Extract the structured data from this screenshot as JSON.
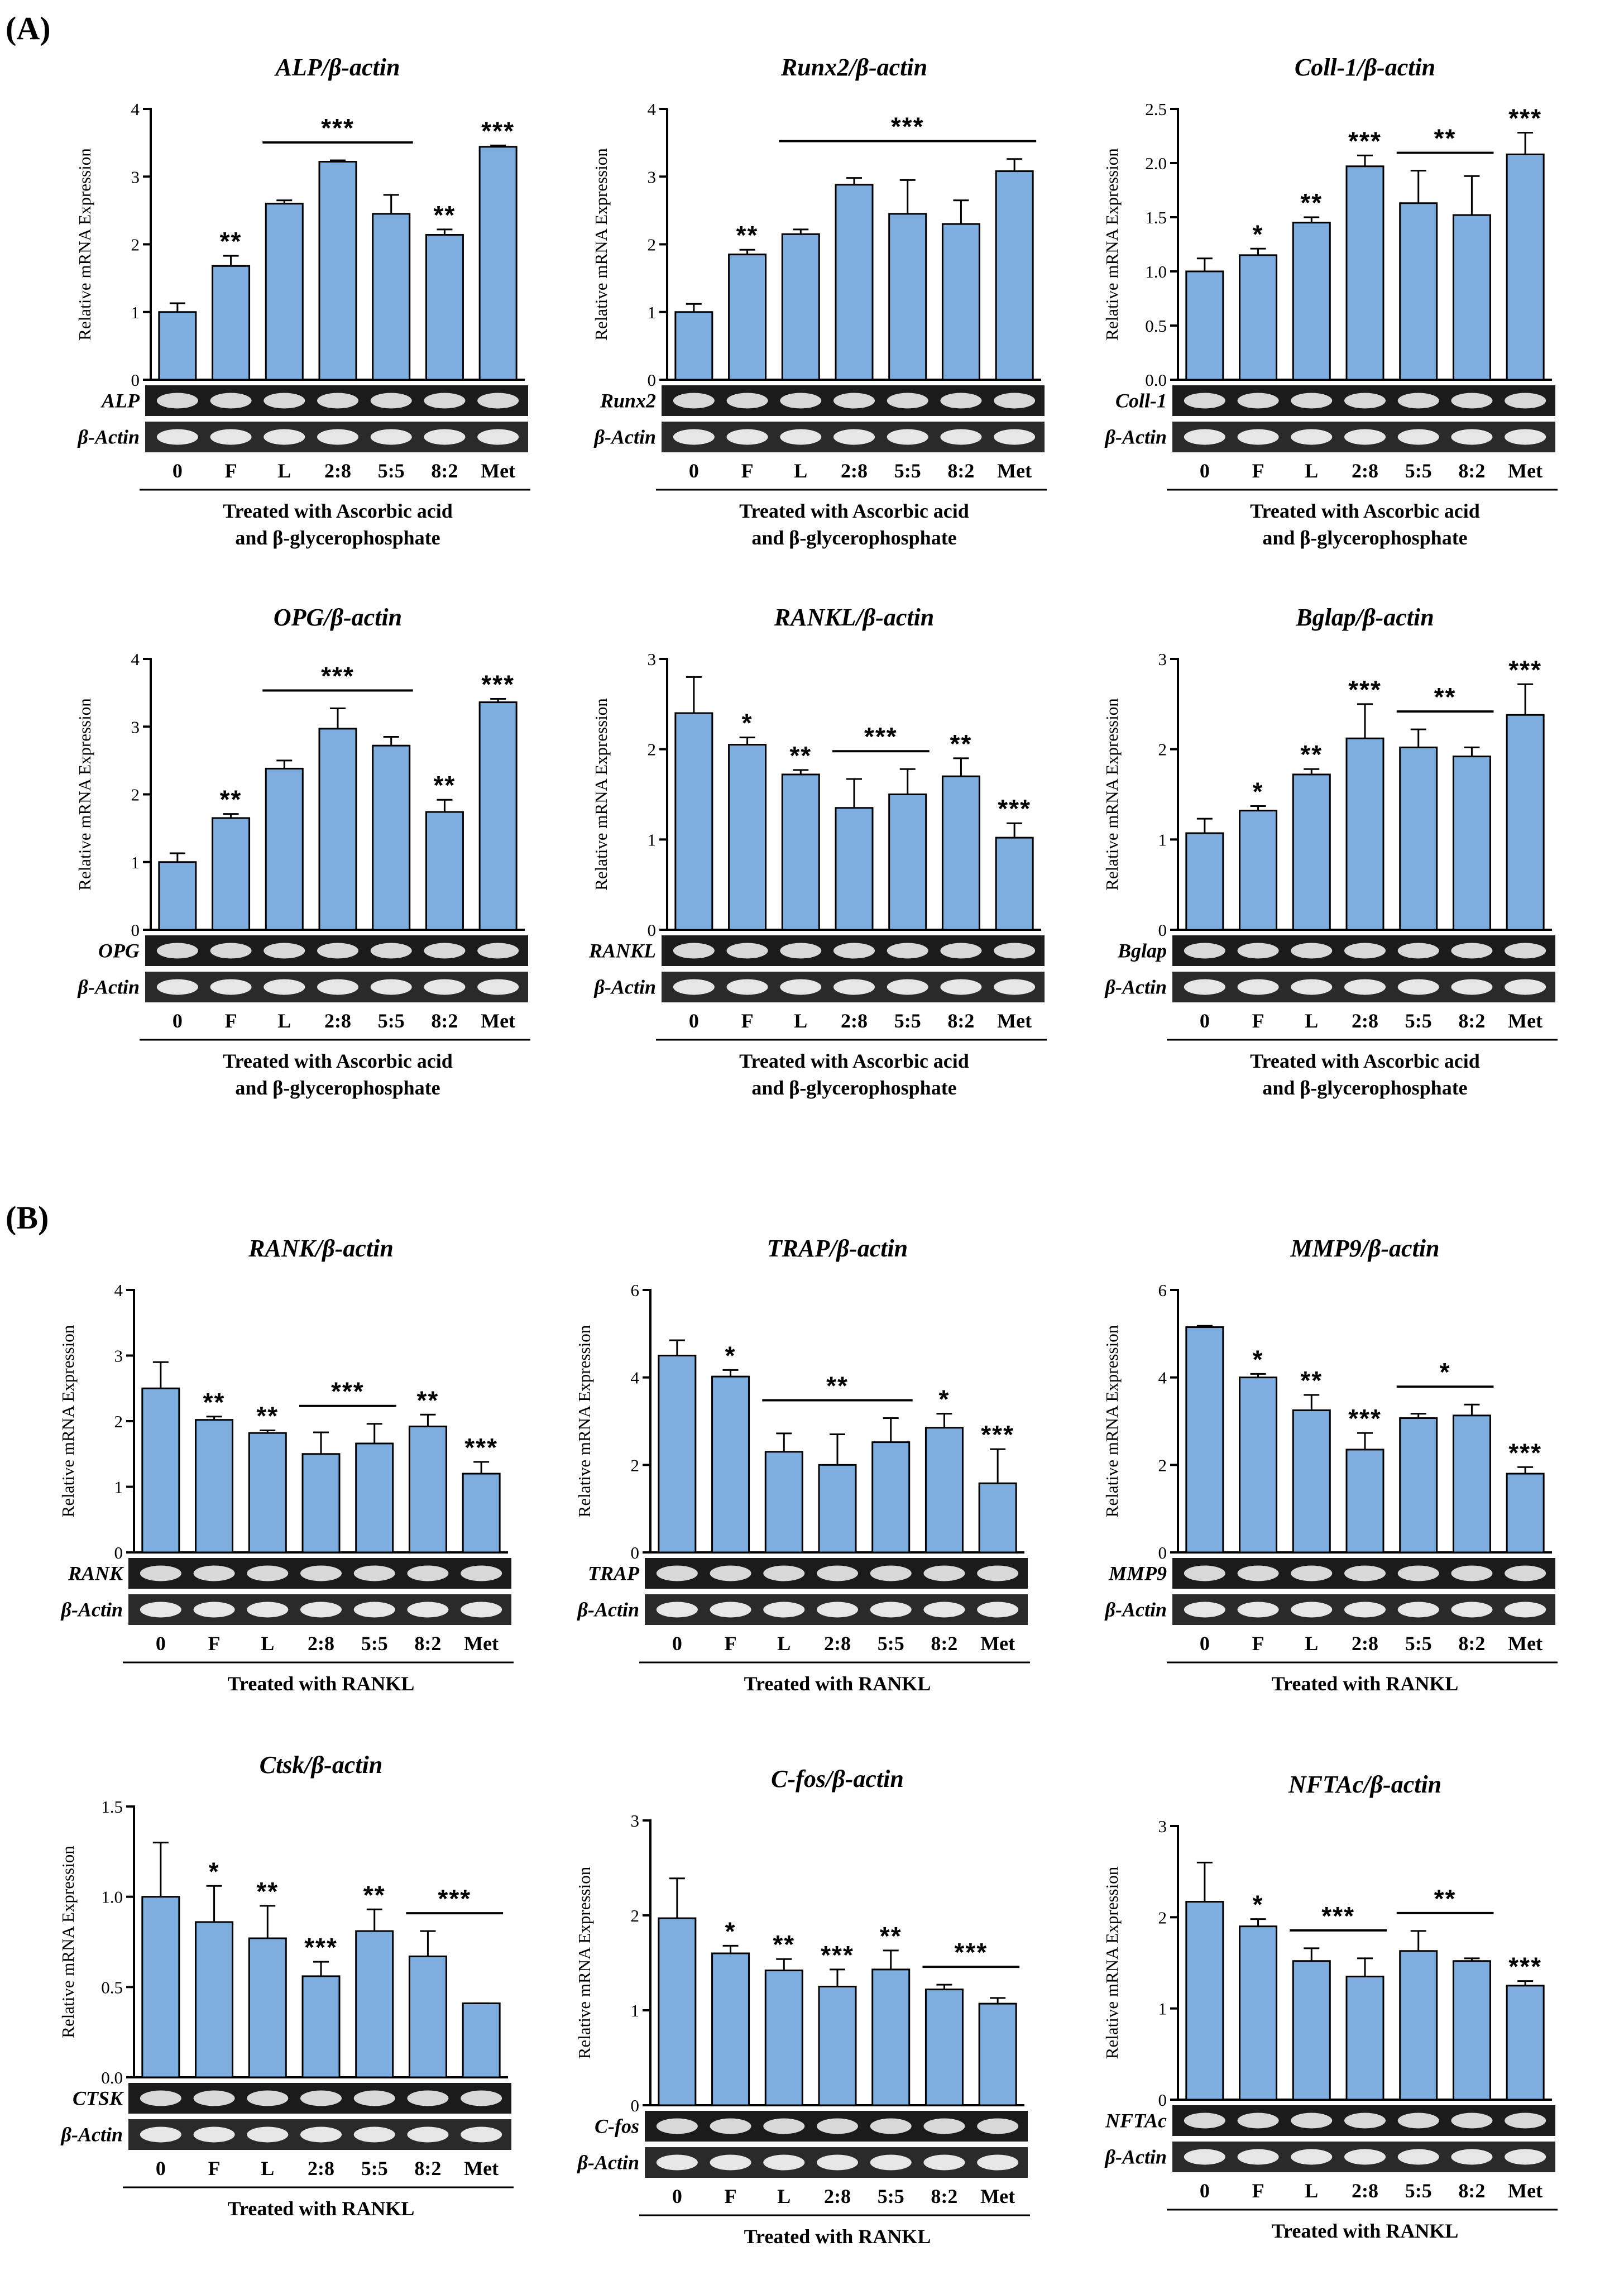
{
  "section_a_label": "(A)",
  "section_b_label": "(B)",
  "colors": {
    "bar": "#7EAEE0",
    "axis": "#000000"
  },
  "chart_data": [
    {
      "id": "alp",
      "type": "bar",
      "title": "ALP/β-actin",
      "ylabel": "Relative mRNA Expression",
      "ylim": [
        0,
        4
      ],
      "yticks": [
        "0",
        "1",
        "2",
        "3",
        "4"
      ],
      "categories": [
        "0",
        "F",
        "L",
        "2:8",
        "5:5",
        "8:2",
        "Met"
      ],
      "values": [
        1.0,
        1.68,
        2.6,
        3.22,
        2.45,
        2.14,
        3.44
      ],
      "errors": [
        0.13,
        0.15,
        0.05,
        0.02,
        0.28,
        0.08,
        0.02
      ],
      "annotations": [
        "",
        "**",
        "",
        "",
        "",
        "**",
        "***"
      ],
      "brackets": [
        {
          "from": 2,
          "to": 4,
          "label": "***"
        }
      ],
      "gel_labels": [
        "ALP",
        "β-Actin"
      ],
      "treatment": [
        "Treated with Ascorbic acid",
        "and β-glycerophosphate"
      ]
    },
    {
      "id": "runx2",
      "type": "bar",
      "title": "Runx2/β-actin",
      "ylabel": "Relative mRNA Expression",
      "ylim": [
        0,
        4
      ],
      "yticks": [
        "0",
        "1",
        "2",
        "3",
        "4"
      ],
      "categories": [
        "0",
        "F",
        "L",
        "2:8",
        "5:5",
        "8:2",
        "Met"
      ],
      "values": [
        1.0,
        1.85,
        2.15,
        2.88,
        2.45,
        2.3,
        3.08
      ],
      "errors": [
        0.12,
        0.07,
        0.07,
        0.1,
        0.5,
        0.35,
        0.18
      ],
      "annotations": [
        "",
        "**",
        "",
        "",
        "",
        "",
        ""
      ],
      "brackets": [
        {
          "from": 2,
          "to": 6,
          "label": "***"
        }
      ],
      "gel_labels": [
        "Runx2",
        "β-Actin"
      ],
      "treatment": [
        "Treated with Ascorbic acid",
        "and β-glycerophosphate"
      ]
    },
    {
      "id": "coll1",
      "type": "bar",
      "title": "Coll-1/β-actin",
      "ylabel": "Relative mRNA Expression",
      "ylim": [
        0,
        2.5
      ],
      "yticks": [
        "0.0",
        "0.5",
        "1.0",
        "1.5",
        "2.0",
        "2.5"
      ],
      "categories": [
        "0",
        "F",
        "L",
        "2:8",
        "5:5",
        "8:2",
        "Met"
      ],
      "values": [
        1.0,
        1.15,
        1.45,
        1.97,
        1.63,
        1.52,
        2.08
      ],
      "errors": [
        0.12,
        0.06,
        0.05,
        0.1,
        0.3,
        0.36,
        0.2
      ],
      "annotations": [
        "",
        "*",
        "**",
        "***",
        "",
        "",
        "***"
      ],
      "brackets": [
        {
          "from": 4,
          "to": 5,
          "label": "**"
        }
      ],
      "gel_labels": [
        "Coll-1",
        "β-Actin"
      ],
      "treatment": [
        "Treated with Ascorbic acid",
        "and β-glycerophosphate"
      ]
    },
    {
      "id": "opg",
      "type": "bar",
      "title": "OPG/β-actin",
      "ylabel": "Relative mRNA Expression",
      "ylim": [
        0,
        4
      ],
      "yticks": [
        "0",
        "1",
        "2",
        "3",
        "4"
      ],
      "categories": [
        "0",
        "F",
        "L",
        "2:8",
        "5:5",
        "8:2",
        "Met"
      ],
      "values": [
        1.0,
        1.65,
        2.38,
        2.97,
        2.72,
        1.74,
        3.36
      ],
      "errors": [
        0.13,
        0.06,
        0.12,
        0.3,
        0.13,
        0.18,
        0.05
      ],
      "annotations": [
        "",
        "**",
        "",
        "",
        "",
        "**",
        "***"
      ],
      "brackets": [
        {
          "from": 2,
          "to": 4,
          "label": "***"
        }
      ],
      "gel_labels": [
        "OPG",
        "β-Actin"
      ],
      "treatment": [
        "Treated with Ascorbic acid",
        "and β-glycerophosphate"
      ]
    },
    {
      "id": "rankl",
      "type": "bar",
      "title": "RANKL/β-actin",
      "ylabel": "Relative mRNA Expression",
      "ylim": [
        0,
        3
      ],
      "yticks": [
        "0",
        "1",
        "2",
        "3"
      ],
      "categories": [
        "0",
        "F",
        "L",
        "2:8",
        "5:5",
        "8:2",
        "Met"
      ],
      "values": [
        2.4,
        2.05,
        1.72,
        1.35,
        1.5,
        1.7,
        1.02
      ],
      "errors": [
        0.4,
        0.08,
        0.05,
        0.32,
        0.28,
        0.2,
        0.16
      ],
      "annotations": [
        "",
        "*",
        "**",
        "",
        "",
        "**",
        "***"
      ],
      "brackets": [
        {
          "from": 3,
          "to": 4,
          "label": "***"
        }
      ],
      "gel_labels": [
        "RANKL",
        "β-Actin"
      ],
      "treatment": [
        "Treated with Ascorbic acid",
        "and β-glycerophosphate"
      ]
    },
    {
      "id": "bglap",
      "type": "bar",
      "title": "Bglap/β-actin",
      "ylabel": "Relative mRNA Expression",
      "ylim": [
        0,
        3
      ],
      "yticks": [
        "0",
        "1",
        "2",
        "3"
      ],
      "categories": [
        "0",
        "F",
        "L",
        "2:8",
        "5:5",
        "8:2",
        "Met"
      ],
      "values": [
        1.07,
        1.32,
        1.72,
        2.12,
        2.02,
        1.92,
        2.38
      ],
      "errors": [
        0.16,
        0.05,
        0.06,
        0.38,
        0.2,
        0.1,
        0.34
      ],
      "annotations": [
        "",
        "*",
        "**",
        "***",
        "",
        "",
        "***"
      ],
      "brackets": [
        {
          "from": 4,
          "to": 5,
          "label": "**"
        }
      ],
      "gel_labels": [
        "Bglap",
        "β-Actin"
      ],
      "treatment": [
        "Treated with Ascorbic acid",
        "and β-glycerophosphate"
      ]
    },
    {
      "id": "rank",
      "type": "bar",
      "title": "RANK/β-actin",
      "ylabel": "Relative mRNA Expression",
      "ylim": [
        0,
        4
      ],
      "yticks": [
        "0",
        "1",
        "2",
        "3",
        "4"
      ],
      "categories": [
        "0",
        "F",
        "L",
        "2:8",
        "5:5",
        "8:2",
        "Met"
      ],
      "values": [
        2.5,
        2.02,
        1.82,
        1.5,
        1.66,
        1.92,
        1.2
      ],
      "errors": [
        0.4,
        0.05,
        0.04,
        0.33,
        0.3,
        0.18,
        0.18
      ],
      "annotations": [
        "",
        "**",
        "**",
        "",
        "",
        "**",
        "***"
      ],
      "brackets": [
        {
          "from": 3,
          "to": 4,
          "label": "***"
        }
      ],
      "gel_labels": [
        "RANK",
        "β-Actin"
      ],
      "treatment": [
        "Treated with RANKL"
      ]
    },
    {
      "id": "trap",
      "type": "bar",
      "title": "TRAP/β-actin",
      "ylabel": "Relative mRNA Expression",
      "ylim": [
        0,
        6
      ],
      "yticks": [
        "0",
        "2",
        "4",
        "6"
      ],
      "categories": [
        "0",
        "F",
        "L",
        "2:8",
        "5:5",
        "8:2",
        "Met"
      ],
      "values": [
        4.5,
        4.02,
        2.3,
        2.0,
        2.52,
        2.85,
        1.58
      ],
      "errors": [
        0.35,
        0.15,
        0.42,
        0.7,
        0.55,
        0.32,
        0.78
      ],
      "annotations": [
        "",
        "*",
        "",
        "",
        "",
        "*",
        "***"
      ],
      "brackets": [
        {
          "from": 2,
          "to": 4,
          "label": "**"
        }
      ],
      "gel_labels": [
        "TRAP",
        "β-Actin"
      ],
      "treatment": [
        "Treated with RANKL"
      ]
    },
    {
      "id": "mmp9",
      "type": "bar",
      "title": "MMP9/β-actin",
      "ylabel": "Relative mRNA Expression",
      "ylim": [
        0,
        6
      ],
      "yticks": [
        "0",
        "2",
        "4",
        "6"
      ],
      "categories": [
        "0",
        "F",
        "L",
        "2:8",
        "5:5",
        "8:2",
        "Met"
      ],
      "values": [
        5.15,
        4.0,
        3.25,
        2.35,
        3.07,
        3.13,
        1.8
      ],
      "errors": [
        0.03,
        0.08,
        0.35,
        0.38,
        0.1,
        0.25,
        0.15
      ],
      "annotations": [
        "",
        "*",
        "**",
        "***",
        "",
        "",
        "***"
      ],
      "brackets": [
        {
          "from": 4,
          "to": 5,
          "label": "*"
        }
      ],
      "gel_labels": [
        "MMP9",
        "β-Actin"
      ],
      "treatment": [
        "Treated with RANKL"
      ]
    },
    {
      "id": "ctsk",
      "type": "bar",
      "title": "Ctsk/β-actin",
      "ylabel": "Relative mRNA Expression",
      "ylim": [
        0,
        1.5
      ],
      "yticks": [
        "0.0",
        "0.5",
        "1.0",
        "1.5"
      ],
      "categories": [
        "0",
        "F",
        "L",
        "2:8",
        "5:5",
        "8:2",
        "Met"
      ],
      "values": [
        1.0,
        0.86,
        0.77,
        0.56,
        0.81,
        0.67,
        0.41
      ],
      "errors": [
        0.3,
        0.2,
        0.18,
        0.08,
        0.12,
        0.14,
        0.0
      ],
      "annotations": [
        "",
        "*",
        "**",
        "***",
        "**",
        "",
        ""
      ],
      "brackets": [
        {
          "from": 5,
          "to": 6,
          "label": "***"
        }
      ],
      "gel_labels": [
        "CTSK",
        "β-Actin"
      ],
      "treatment": [
        "Treated with RANKL"
      ]
    },
    {
      "id": "cfos",
      "type": "bar",
      "title": "C-fos/β-actin",
      "ylabel": "Relative mRNA Expression",
      "ylim": [
        0,
        3
      ],
      "yticks": [
        "0",
        "1",
        "2",
        "3"
      ],
      "categories": [
        "0",
        "F",
        "L",
        "2:8",
        "5:5",
        "8:2",
        "Met"
      ],
      "values": [
        1.97,
        1.6,
        1.42,
        1.25,
        1.43,
        1.22,
        1.07
      ],
      "errors": [
        0.42,
        0.08,
        0.12,
        0.18,
        0.2,
        0.05,
        0.06
      ],
      "annotations": [
        "",
        "*",
        "**",
        "***",
        "**",
        "",
        ""
      ],
      "brackets": [
        {
          "from": 5,
          "to": 6,
          "label": "***"
        }
      ],
      "gel_labels": [
        "C-fos",
        "β-Actin"
      ],
      "treatment": [
        "Treated with RANKL"
      ]
    },
    {
      "id": "nftac",
      "type": "bar",
      "title": "NFTAc/β-actin",
      "ylabel": "Relative mRNA Expression",
      "ylim": [
        0,
        3
      ],
      "yticks": [
        "0",
        "1",
        "2",
        "3"
      ],
      "categories": [
        "0",
        "F",
        "L",
        "2:8",
        "5:5",
        "8:2",
        "Met"
      ],
      "values": [
        2.17,
        1.9,
        1.52,
        1.35,
        1.63,
        1.52,
        1.25
      ],
      "errors": [
        0.43,
        0.08,
        0.14,
        0.2,
        0.22,
        0.03,
        0.05
      ],
      "annotations": [
        "",
        "*",
        "",
        "",
        "",
        "",
        "***"
      ],
      "brackets": [
        {
          "from": 2,
          "to": 3,
          "label": "***"
        },
        {
          "from": 4,
          "to": 5,
          "label": "**"
        }
      ],
      "gel_labels": [
        "NFTAc",
        "β-Actin"
      ],
      "treatment": [
        "Treated with RANKL"
      ]
    }
  ]
}
